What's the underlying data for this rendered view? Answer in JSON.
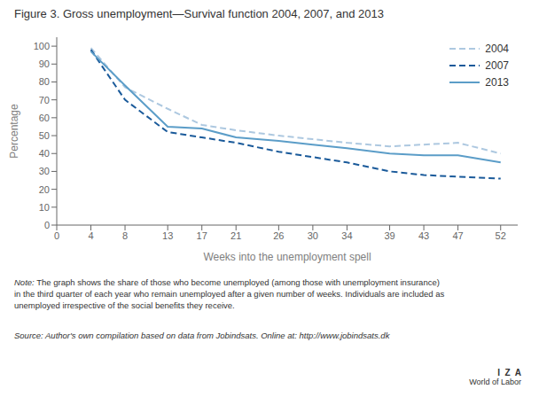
{
  "chart_data": {
    "type": "line",
    "title": "Figure 3. Gross unemployment—Survival function 2004, 2007, and 2013",
    "xlabel": "Weeks into the unemployment spell",
    "ylabel": "Percentage",
    "x": [
      4,
      8,
      13,
      17,
      21,
      26,
      30,
      34,
      39,
      43,
      47,
      52
    ],
    "series": [
      {
        "name": "2004",
        "color": "#adc8e0",
        "line_style": "dashed",
        "values": [
          99,
          77,
          65,
          56,
          53,
          50,
          48,
          46,
          44,
          45,
          46,
          40
        ]
      },
      {
        "name": "2007",
        "color": "#1a5a9a",
        "line_style": "dashed",
        "values": [
          98,
          70,
          52,
          49,
          46,
          41,
          38,
          35,
          30,
          28,
          27,
          26
        ]
      },
      {
        "name": "2013",
        "color": "#5b9dc8",
        "line_style": "solid",
        "values": [
          97,
          78,
          55,
          54,
          49,
          47,
          45,
          43,
          40,
          39,
          39,
          35
        ]
      }
    ],
    "xlim": [
      0,
      54
    ],
    "ylim": [
      0,
      105
    ],
    "xticks": [
      0,
      4,
      8,
      13,
      17,
      21,
      26,
      30,
      34,
      39,
      43,
      47,
      52
    ],
    "yticks": [
      0,
      10,
      20,
      30,
      40,
      50,
      60,
      70,
      80,
      90,
      100
    ],
    "grid": false,
    "legend": "upper right",
    "annotations": [
      "Note:",
      " The graph shows the share of those who become unemployed (among those with unemployment insurance)\nin the third quarter of each year who remain unemployed after a given number of weeks. Individuals are included as\nunemployed irrespective of the social benefits they receive.",
      "Source:",
      " Author's own compilation based on data from Jobindsats. Online at: http://www.jobindsats.dk",
      "I  Z  A",
      "World of Labor"
    ]
  }
}
